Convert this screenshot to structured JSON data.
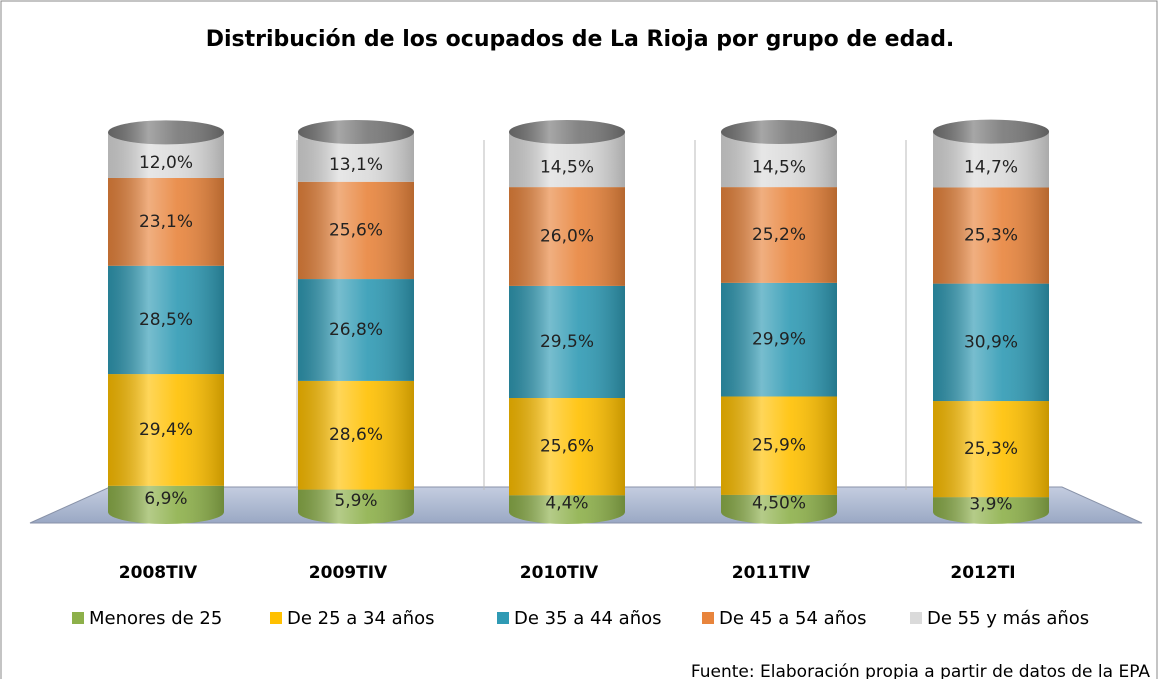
{
  "chart_data": {
    "type": "stacked_cylinder",
    "title": "Distribución de los ocupados de La Rioja por grupo de edad.",
    "categories": [
      "2008TIV",
      "2009TIV",
      "2010TIV",
      "2011TIV",
      "2012TI"
    ],
    "series": [
      {
        "name": "Menores de 25",
        "color": "#8db04a",
        "values": [
          6.9,
          5.9,
          4.4,
          4.5,
          3.9
        ],
        "value_labels": [
          "6,9%",
          "5,9%",
          "4,4%",
          "4,50%",
          "3,9%"
        ]
      },
      {
        "name": "De 25 a 34 años",
        "color": "#ffc000",
        "values": [
          29.4,
          28.6,
          25.6,
          25.9,
          25.3
        ],
        "value_labels": [
          "29,4%",
          "28,6%",
          "25,6%",
          "25,9%",
          "25,3%"
        ]
      },
      {
        "name": "De 35 a 44 años",
        "color": "#2f9ab4",
        "values": [
          28.5,
          26.8,
          29.5,
          29.9,
          30.9
        ],
        "value_labels": [
          "28,5%",
          "26,8%",
          "29,5%",
          "29,9%",
          "30,9%"
        ]
      },
      {
        "name": "De 45 a 54 años",
        "color": "#e8843c",
        "values": [
          23.1,
          25.6,
          26.0,
          25.2,
          25.3
        ],
        "value_labels": [
          "23,1%",
          "25,6%",
          "26,0%",
          "25,2%",
          "25,3%"
        ]
      },
      {
        "name": "De 55 y más años",
        "color": "#dadada",
        "values": [
          12.0,
          13.1,
          14.5,
          14.5,
          14.7
        ],
        "value_labels": [
          "12,0%",
          "13,1%",
          "14,5%",
          "14,5%",
          "14,7%"
        ]
      }
    ],
    "source": "Fuente: Elaboración propia a partir de datos de la EPA"
  }
}
